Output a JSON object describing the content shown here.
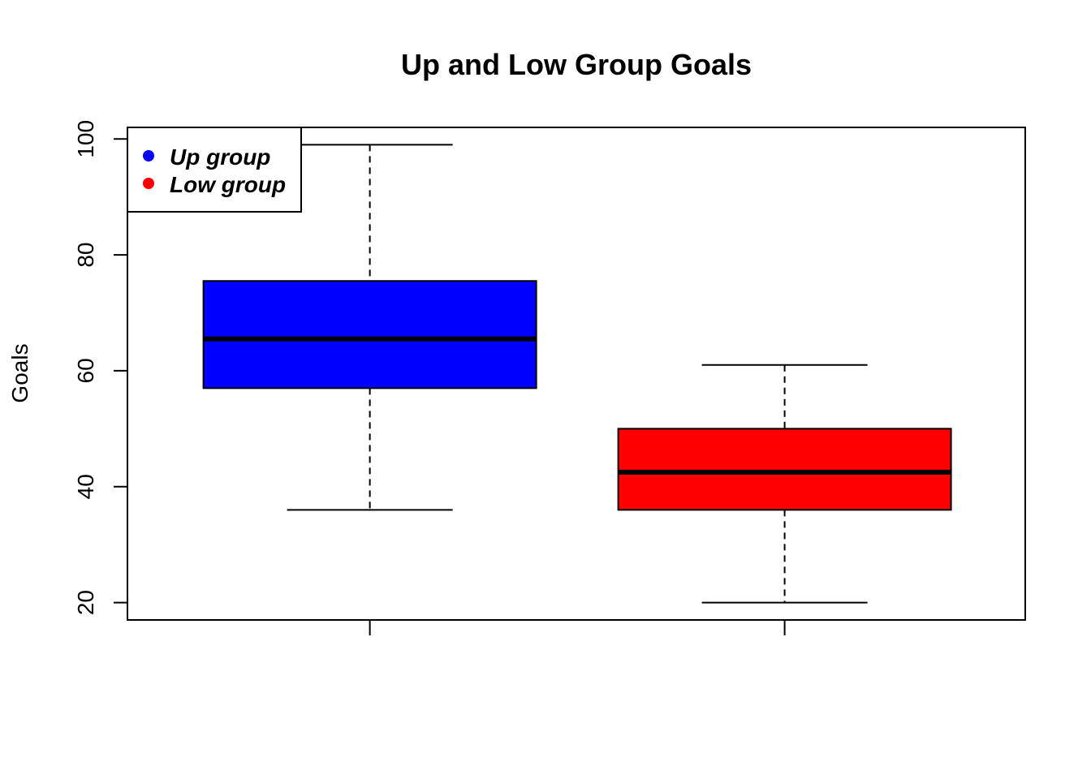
{
  "chart_data": {
    "type": "boxplot",
    "title": "Up and Low Group Goals",
    "xlabel": "",
    "ylabel": "Goals",
    "ylim": [
      17,
      102
    ],
    "yticks": [
      20,
      40,
      60,
      80,
      100
    ],
    "grid": false,
    "legend_position": "top-left",
    "series": [
      {
        "name": "Up group",
        "color": "#0000ff",
        "min": 36,
        "q1": 57,
        "median": 65.5,
        "q3": 75.5,
        "max": 99
      },
      {
        "name": "Low group",
        "color": "#ff0000",
        "min": 20,
        "q1": 36,
        "median": 42.5,
        "q3": 50,
        "max": 61
      }
    ],
    "legend": [
      {
        "label": "Up group",
        "color": "#0000ff"
      },
      {
        "label": "Low group",
        "color": "#ff0000"
      }
    ]
  }
}
